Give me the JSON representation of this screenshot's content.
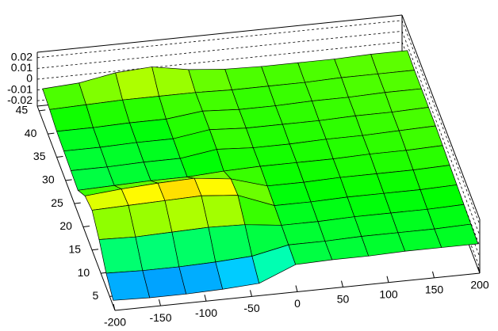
{
  "chart_data": {
    "type": "surface",
    "x": [
      -200,
      -160,
      -120,
      -80,
      -40,
      0,
      40,
      80,
      120,
      160,
      200
    ],
    "y": [
      3,
      7,
      11,
      15,
      19,
      23,
      27,
      31,
      35,
      39,
      43
    ],
    "z": [
      [
        -0.02,
        -0.021,
        -0.021,
        -0.02,
        -0.018,
        -0.004,
        -0.003,
        -0.003,
        -0.002,
        -0.002,
        -0.002
      ],
      [
        -0.012,
        -0.013,
        -0.013,
        -0.012,
        -0.01,
        -0.003,
        -0.003,
        -0.002,
        -0.002,
        -0.002,
        -0.001
      ],
      [
        0.002,
        0.001,
        0.002,
        0.003,
        0.002,
        -0.002,
        -0.002,
        -0.001,
        -0.001,
        -0.001,
        0
      ],
      [
        0.012,
        0.013,
        0.014,
        0.015,
        0.012,
        -0.001,
        -0.001,
        0,
        0,
        0,
        0.001
      ],
      [
        0.008,
        0.011,
        0.013,
        0.014,
        0.01,
        0,
        0,
        0.001,
        0.001,
        0.001,
        0.002
      ],
      [
        -0.004,
        -0.003,
        -0.002,
        -0.002,
        0,
        0.001,
        0.001,
        0.001,
        0.002,
        0.002,
        0.003
      ],
      [
        -0.003,
        -0.003,
        -0.002,
        -0.002,
        0.003,
        0.001,
        0.001,
        0.002,
        0.002,
        0.003,
        0.004
      ],
      [
        -0.002,
        -0.002,
        -0.001,
        -0.001,
        0.004,
        0.002,
        0.002,
        0.002,
        0.003,
        0.003,
        0.004
      ],
      [
        -0.001,
        -0.001,
        0,
        0,
        0.004,
        0.002,
        0.002,
        0.003,
        0.003,
        0.004,
        0.004
      ],
      [
        0.002,
        0.003,
        0.004,
        0.004,
        0.004,
        0.003,
        0.003,
        0.003,
        0.004,
        0.004,
        0.004
      ],
      [
        0.004,
        0.006,
        0.012,
        0.014,
        0.008,
        0.005,
        0.004,
        0.004,
        0.004,
        0.005,
        0.005
      ]
    ],
    "xlim": [
      -200,
      200
    ],
    "xticks": [
      -200,
      -150,
      -100,
      -50,
      0,
      50,
      100,
      150,
      200
    ],
    "ylim": [
      2,
      46
    ],
    "yticks": [
      5,
      10,
      15,
      20,
      25,
      30,
      35,
      40,
      45
    ],
    "zlim": [
      -0.025,
      0.025
    ],
    "zticks": [
      -0.02,
      -0.01,
      0,
      0.01,
      0.02
    ],
    "grid": true
  }
}
